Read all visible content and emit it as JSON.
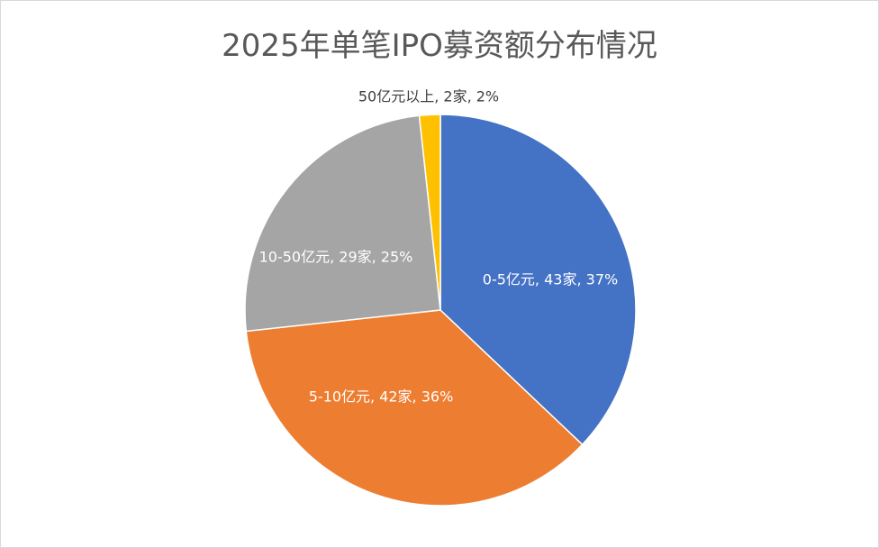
{
  "chart_data": {
    "type": "pie",
    "title": "2025年单笔IPO募资额分布情况",
    "start_angle_deg": 0,
    "direction": "clockwise",
    "slices": [
      {
        "category": "0-5亿元",
        "count": 43,
        "percent": 37,
        "label": "0-5亿元, 43家, 37%",
        "color": "#4472C4",
        "label_color": "#ffffff"
      },
      {
        "category": "5-10亿元",
        "count": 42,
        "percent": 36,
        "label": "5-10亿元, 42家, 36%",
        "color": "#ED7D31",
        "label_color": "#ffffff"
      },
      {
        "category": "10-50亿元",
        "count": 29,
        "percent": 25,
        "label": "10-50亿元, 29家, 25%",
        "color": "#A5A5A5",
        "label_color": "#ffffff"
      },
      {
        "category": "50亿元以上",
        "count": 2,
        "percent": 2,
        "label": "50亿元以上, 2家, 2%",
        "color": "#FFC000",
        "label_color": "#404040"
      }
    ]
  }
}
